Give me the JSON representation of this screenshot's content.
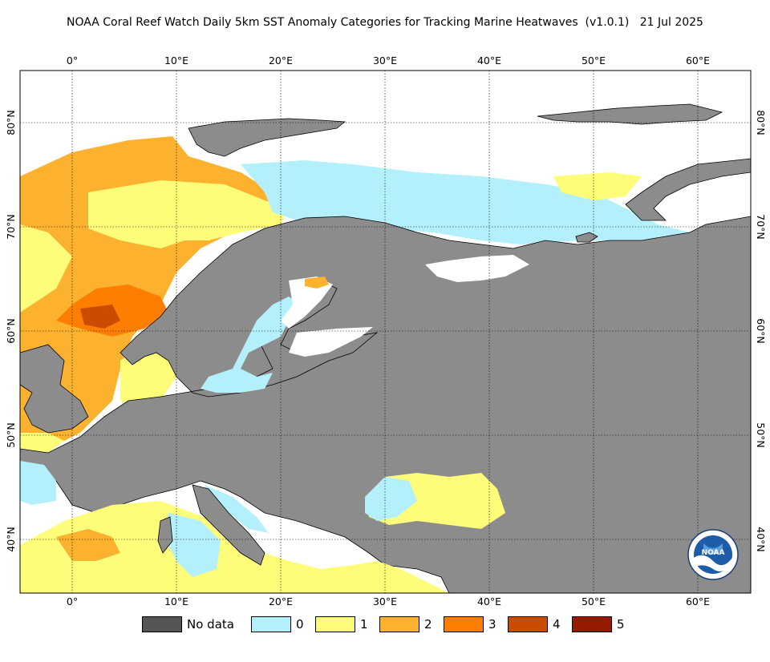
{
  "title": "NOAA Coral Reef Watch Daily 5km SST Anomaly Categories for Tracking Marine Heatwaves  (v1.0.1)   21 Jul 2025",
  "axes": {
    "lon_ticks": [
      "0°",
      "10°E",
      "20°E",
      "30°E",
      "40°E",
      "50°E",
      "60°E"
    ],
    "lat_ticks": [
      "80°N",
      "70°N",
      "60°N",
      "50°N",
      "40°N"
    ]
  },
  "legend": [
    {
      "label": "No data",
      "color": "#555555"
    },
    {
      "label": "0",
      "color": "#b3f0fb"
    },
    {
      "label": "1",
      "color": "#fdfd7a"
    },
    {
      "label": "2",
      "color": "#fdb22f"
    },
    {
      "label": "3",
      "color": "#fd7e00"
    },
    {
      "label": "4",
      "color": "#cb4c00"
    },
    {
      "label": "5",
      "color": "#961a00"
    }
  ],
  "colors": {
    "land": "#8c8c8c",
    "ice_or_missing": "#ffffff",
    "grid": "#000000"
  },
  "logo": {
    "name": "NOAA",
    "text": "NOAA"
  }
}
